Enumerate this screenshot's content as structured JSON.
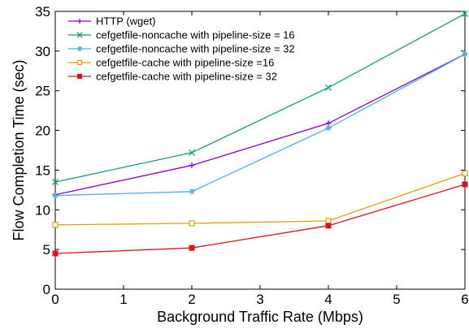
{
  "chart_data": {
    "type": "line",
    "title": "",
    "xlabel": "Background Traffic Rate (Mbps)",
    "ylabel": "Flow Completion Time (sec)",
    "x": [
      0,
      2,
      4,
      6
    ],
    "xlim": [
      0,
      6
    ],
    "ylim": [
      0,
      35
    ],
    "xticks": [
      0,
      1,
      2,
      3,
      4,
      5,
      6
    ],
    "yticks": [
      0,
      5,
      10,
      15,
      20,
      25,
      30,
      35
    ],
    "grid": false,
    "legend_position": "top-left",
    "series": [
      {
        "name": "HTTP (wget)",
        "values": [
          11.9,
          15.6,
          20.9,
          29.6
        ],
        "color": "#8B00D0",
        "marker": "plus"
      },
      {
        "name": "cefgetfile-noncache with pipeline-size = 16",
        "values": [
          13.5,
          17.2,
          25.4,
          34.7
        ],
        "color": "#119F7A",
        "marker": "x"
      },
      {
        "name": "cefgetfile-noncache with pipeline-size = 32",
        "values": [
          11.8,
          12.3,
          20.3,
          29.6
        ],
        "color": "#4DB0E8",
        "marker": "star"
      },
      {
        "name": "cefgetfile-cache with pipeline-size =16",
        "values": [
          8.1,
          8.3,
          8.6,
          14.6
        ],
        "color": "#E0A000",
        "marker": "square-open"
      },
      {
        "name": "cefgetfile-cache with pipeline-size = 32",
        "values": [
          4.5,
          5.2,
          8.0,
          13.2
        ],
        "color": "#E0101A",
        "marker": "square-filled"
      }
    ]
  }
}
